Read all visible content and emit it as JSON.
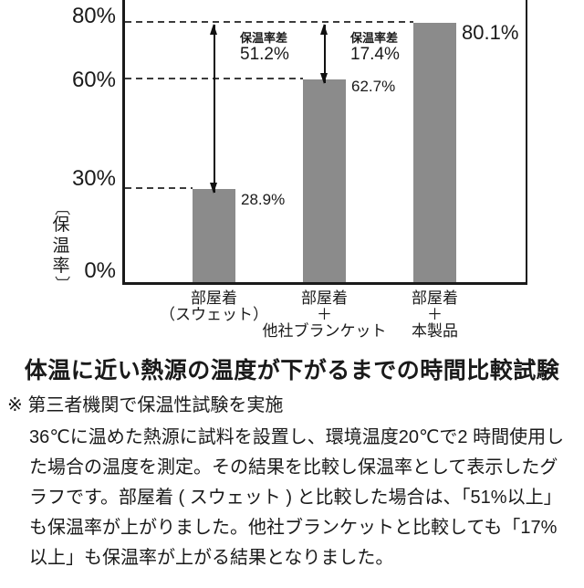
{
  "chart_data": {
    "type": "bar",
    "title": "体温に近い熱源の温度が下がるまでの時間比較試験",
    "ylabel": "〔保温率〕",
    "categories": [
      "部屋着\n（スウェット）",
      "部屋着\n＋\n他社ブランケット",
      "部屋着\n＋\n本製品"
    ],
    "values": [
      28.9,
      62.7,
      80.1
    ],
    "value_labels": [
      "28.9%",
      "62.7%",
      "80.1%"
    ],
    "yticks": [
      "80%",
      "60%",
      "30%",
      "0%"
    ],
    "ytick_values": [
      80,
      60,
      30,
      0
    ],
    "ylim": [
      0,
      88
    ],
    "grid": "dashed leader lines at bar tops",
    "legend": "none",
    "bar_color": "#8b8b8b",
    "annotations": [
      {
        "label": "保温率差",
        "value": "51.2%",
        "between": [
          28.9,
          80.1
        ]
      },
      {
        "label": "保温率差",
        "value": "17.4%",
        "between": [
          62.7,
          80.1
        ]
      }
    ]
  },
  "footnote": {
    "heading": "※ 第三者機関で保温性試験を実施",
    "lines": [
      "36℃に温めた熱源に試料を設置し、環境温度20℃で2 時間使用し",
      "た場合の温度を測定。その結果を比較し保温率として表示したグ",
      "ラフです。部屋着 ( スウェット ) と比較した場合は、「51%以上」",
      "も保温率が上がりました。他社ブランケットと比較しても「17%",
      "以上」も保温率が上がる結果となりました。"
    ]
  }
}
